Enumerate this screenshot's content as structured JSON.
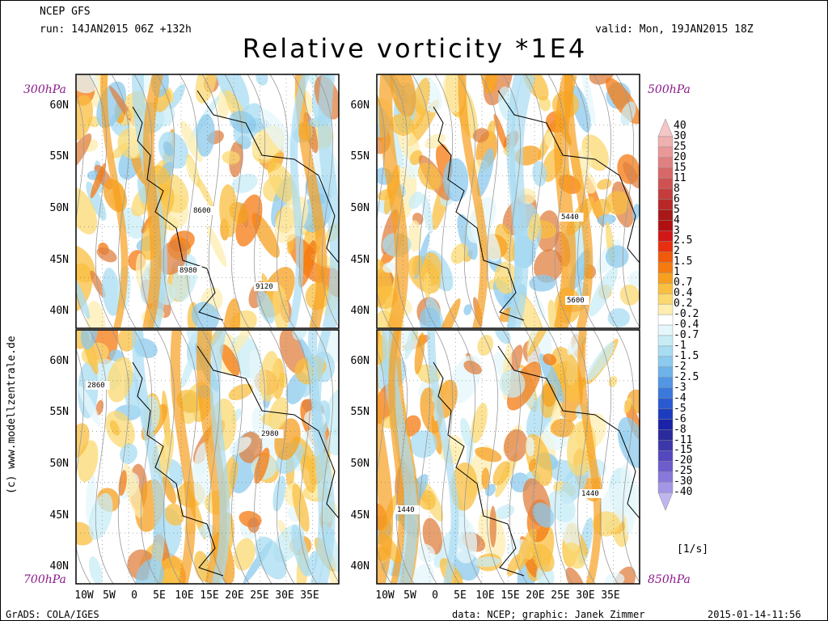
{
  "header": {
    "model": "NCEP GFS",
    "run": "run: 14JAN2015 06Z +132h",
    "valid": "valid: Mon, 19JAN2015 18Z",
    "title": "Relative vorticity *1E4"
  },
  "panels": [
    {
      "level": "300hPa",
      "contours": [
        "8600",
        "8980",
        "9120"
      ]
    },
    {
      "level": "500hPa",
      "contours": [
        "5440",
        "5600"
      ]
    },
    {
      "level": "700hPa",
      "contours": [
        "2860",
        "2980"
      ]
    },
    {
      "level": "850hPa",
      "contours": [
        "1440",
        "1440"
      ]
    }
  ],
  "axes": {
    "lat_top": [
      "60N",
      "55N",
      "50N",
      "45N",
      "40N"
    ],
    "lat_bottom": [
      "60N",
      "55N",
      "50N",
      "45N",
      "40N"
    ],
    "lon": [
      "10W",
      "5W",
      "0",
      "5E",
      "10E",
      "15E",
      "20E",
      "25E",
      "30E",
      "35E"
    ]
  },
  "colorbar": {
    "labels": [
      "40",
      "30",
      "25",
      "20",
      "15",
      "11",
      "8",
      "6",
      "5",
      "4",
      "3",
      "2.5",
      "2",
      "1.5",
      "1",
      "0.7",
      "0.4",
      "0.2",
      "-0.2",
      "-0.4",
      "-0.7",
      "-1",
      "-1.5",
      "-2",
      "-2.5",
      "-3",
      "-4",
      "-5",
      "-6",
      "-8",
      "-11",
      "-15",
      "-20",
      "-25",
      "-30",
      "-40"
    ],
    "colors": [
      "#f5c6c6",
      "#efb0b0",
      "#e99898",
      "#e08080",
      "#d86868",
      "#cf5252",
      "#c43c3c",
      "#b82828",
      "#a81818",
      "#b01010",
      "#d01818",
      "#e83010",
      "#f05a0a",
      "#f57a10",
      "#f7a020",
      "#f9bf40",
      "#fbd870",
      "#fdeeb0",
      "#ffffff",
      "#e6f7fb",
      "#c8ecf6",
      "#a8dcf2",
      "#8ccaee",
      "#6eb2ea",
      "#5296e4",
      "#3a78dc",
      "#2a5ad0",
      "#1c3cc0",
      "#1a22a8",
      "#2a2a9c",
      "#3c38aa",
      "#5448bc",
      "#6c5ccc",
      "#8878da",
      "#a496e6",
      "#c0b6ef"
    ],
    "unit": "[1/s]"
  },
  "credit": "(c) www.modellzentrale.de",
  "footer": {
    "left": "GrADS: COLA/IGES",
    "middle": "data: NCEP; graphic: Janek Zimmer",
    "right": "2015-01-14-11:56"
  }
}
